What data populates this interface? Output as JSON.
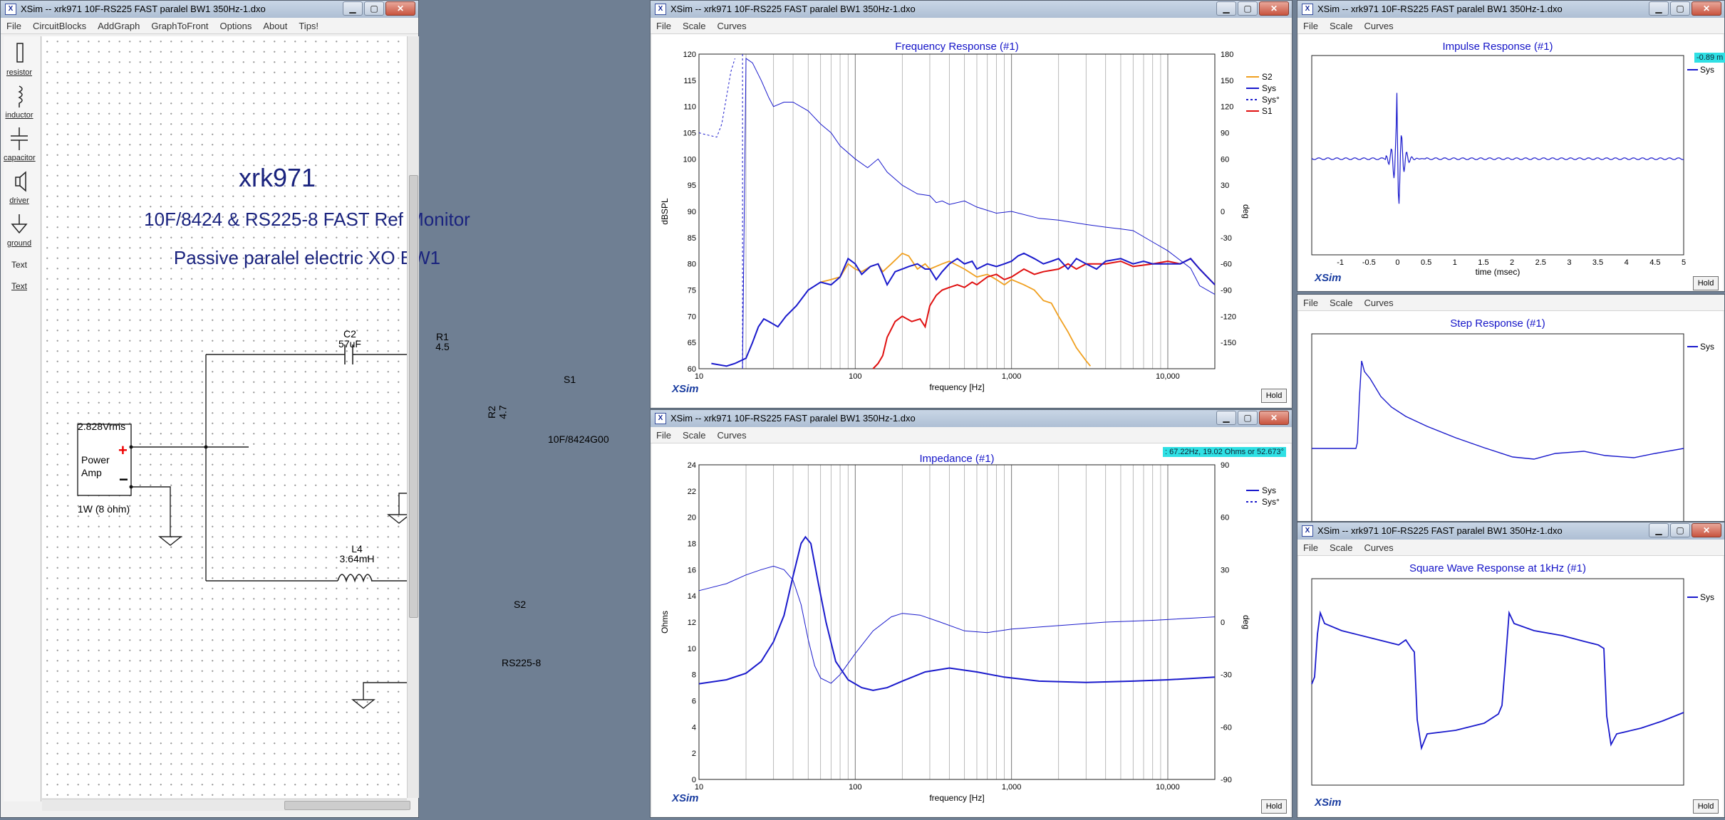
{
  "colors": {
    "sys": "#1a1acc",
    "s1": "#e01010",
    "s2": "#f0a020",
    "grid": "#888888",
    "title": "#1515c8",
    "readout": "#2fe0e4"
  },
  "logo": "XSim",
  "hold_label": "Hold",
  "menu": {
    "schematic": [
      "File",
      "CircuitBlocks",
      "AddGraph",
      "GraphToFront",
      "Options",
      "About",
      "Tips!"
    ],
    "graph": [
      "File",
      "Scale",
      "Curves"
    ]
  },
  "titlebar": {
    "text": "XSim -- xrk971 10F-RS225 FAST paralel BW1 350Hz-1.dxo",
    "icon": "xsim-app-icon",
    "min": "▁",
    "max": "▢",
    "close": "✕"
  },
  "toolbox": [
    {
      "label": "resistor",
      "icon": "resistor-icon"
    },
    {
      "label": "inductor",
      "icon": "inductor-icon"
    },
    {
      "label": "capacitor",
      "icon": "capacitor-icon"
    },
    {
      "label": "driver",
      "icon": "driver-icon"
    },
    {
      "label": "ground",
      "icon": "ground-icon"
    },
    {
      "label": "Text",
      "icon": "text-tool",
      "plain": true
    },
    {
      "label": "Text",
      "icon": "text-link",
      "link": true
    }
  ],
  "schematic": {
    "title": "xrk971",
    "subtitle": "10F/8424 & RS225-8 FAST Ref Monitor",
    "note": "Passive paralel electric XO BW1",
    "amp": {
      "voltage": "2.828Vrms",
      "name": "Power\nAmp",
      "rating": "1W (8 ohm)"
    },
    "c2": {
      "name": "C2",
      "value": "57uF"
    },
    "r1": {
      "name": "R1",
      "value": "4.5"
    },
    "r2": {
      "name": "R2",
      "value": "4.7"
    },
    "l4": {
      "name": "L4",
      "value": "3.64mH"
    },
    "s1": {
      "name": "S1",
      "model": "10F/8424G00"
    },
    "s2": {
      "name": "S2",
      "model": "RS225-8"
    }
  },
  "freq": {
    "title": "Frequency Response (#1)",
    "ylabel": "dBSPL",
    "y2label": "deg",
    "xlabel": "frequency [Hz]",
    "yticks": [
      "120",
      "115",
      "110",
      "105",
      "100",
      "95",
      "90",
      "85",
      "80",
      "75",
      "70",
      "65",
      "60"
    ],
    "y2ticks": [
      "180",
      "150",
      "120",
      "90",
      "60",
      "30",
      "0",
      "-30",
      "-60",
      "-90",
      "-120",
      "-150"
    ],
    "xticks": [
      "10",
      "100",
      "1,000",
      "10,000"
    ],
    "legend": [
      {
        "name": "S2",
        "dash": false
      },
      {
        "name": "Sys",
        "dash": false
      },
      {
        "name": "Sys°",
        "dash": true
      },
      {
        "name": "S1",
        "dash": false
      }
    ]
  },
  "imp": {
    "title": "Impedance (#1)",
    "readout": ": 67.22Hz, 19.02 Ohms or 52.673°",
    "ylabel": "Ohms",
    "y2label": "deg",
    "xlabel": "frequency [Hz]",
    "yticks": [
      "24",
      "22",
      "20",
      "18",
      "16",
      "14",
      "12",
      "10",
      "8",
      "6",
      "4",
      "2",
      "0"
    ],
    "y2ticks": [
      "90",
      "60",
      "30",
      "0",
      "-30",
      "-60",
      "-90"
    ],
    "xticks": [
      "10",
      "100",
      "1,000",
      "10,000"
    ],
    "legend": [
      {
        "name": "Sys",
        "dash": false
      },
      {
        "name": "Sys°",
        "dash": true
      }
    ]
  },
  "impulse": {
    "title": "Impulse Response (#1)",
    "readout": "-0.89 m",
    "legend": "Sys",
    "xlabel": "time (msec)",
    "xticks": [
      "-1",
      "-0.5",
      "0",
      "0.5",
      "1",
      "1.5",
      "2",
      "2.5",
      "3",
      "3.5",
      "4",
      "4.5",
      "5"
    ]
  },
  "step": {
    "title": "Step Response (#1)",
    "legend": "Sys"
  },
  "square": {
    "title": "Square Wave Response at 1kHz (#1)",
    "legend": "Sys"
  }
}
